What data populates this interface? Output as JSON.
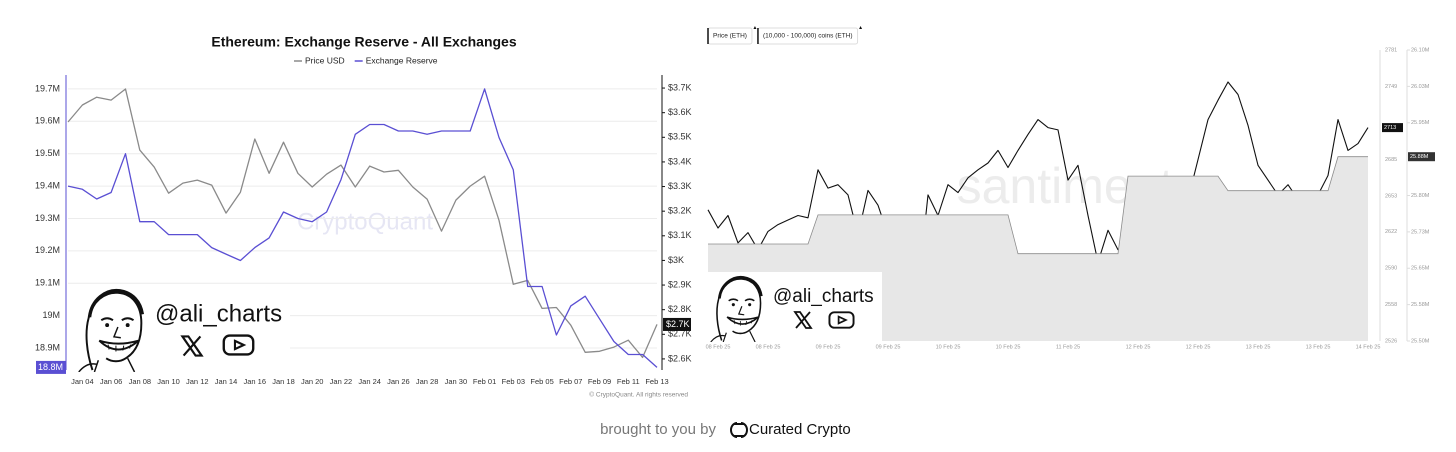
{
  "chart_data": [
    {
      "type": "line",
      "title": "Ethereum: Exchange Reserve - All Exchanges",
      "watermark": "CryptoQuant",
      "copyright": "© CryptoQuant. All rights reserved",
      "categories": [
        null,
        "Jan 04",
        null,
        "Jan 06",
        null,
        "Jan 08",
        null,
        "Jan 10",
        null,
        "Jan 12",
        null,
        "Jan 14",
        null,
        "Jan 16",
        null,
        "Jan 18",
        null,
        "Jan 20",
        null,
        "Jan 22",
        null,
        "Jan 24",
        null,
        "Jan 26",
        null,
        "Jan 28",
        null,
        "Jan 30",
        null,
        "Feb 01",
        null,
        "Feb 03",
        null,
        "Feb 05",
        null,
        "Feb 07",
        null,
        "Feb 09",
        null,
        "Feb 11",
        null,
        "Feb 13"
      ],
      "series": [
        {
          "name": "Price USD",
          "color": "#8a8a8a",
          "axis": "y2",
          "tag_color": "#111111",
          "values": [
            3562,
            3631,
            3663,
            3651,
            3696,
            3448,
            3379,
            3273,
            3314,
            3326,
            3306,
            3192,
            3277,
            3493,
            3354,
            3480,
            3354,
            3298,
            3350,
            3387,
            3298,
            3383,
            3359,
            3366,
            3298,
            3249,
            3119,
            3245,
            3302,
            3342,
            3163,
            2903,
            2919,
            2805,
            2809,
            2737,
            2627,
            2631,
            2648,
            2676,
            2606,
            2740
          ],
          "value_labels": [
            null,
            null,
            null,
            null,
            null,
            null,
            null,
            null,
            null,
            null,
            null,
            null,
            null,
            null,
            null,
            null,
            null,
            null,
            null,
            null,
            null,
            null,
            null,
            null,
            null,
            null,
            null,
            null,
            null,
            null,
            null,
            null,
            null,
            null,
            null,
            null,
            null,
            null,
            null,
            null,
            null,
            "$2.7K"
          ]
        },
        {
          "name": "Exchange Reserve",
          "color": "#5a4fd3",
          "tag_color": "#5a4fd3",
          "values": [
            19.4,
            19.39,
            19.36,
            19.38,
            19.5,
            19.29,
            19.29,
            19.25,
            19.25,
            19.25,
            19.21,
            19.19,
            19.17,
            19.21,
            19.24,
            19.32,
            19.3,
            19.29,
            19.32,
            19.42,
            19.56,
            19.59,
            19.59,
            19.57,
            19.57,
            19.56,
            19.57,
            19.57,
            19.57,
            19.7,
            19.55,
            19.45,
            19.09,
            19.09,
            18.94,
            19.03,
            19.06,
            18.99,
            18.92,
            18.88,
            18.88,
            18.84
          ],
          "value_labels": [
            null,
            null,
            null,
            null,
            null,
            null,
            null,
            null,
            null,
            null,
            null,
            null,
            null,
            null,
            null,
            null,
            null,
            null,
            null,
            null,
            null,
            null,
            null,
            null,
            null,
            null,
            null,
            null,
            null,
            null,
            null,
            null,
            null,
            null,
            null,
            null,
            null,
            null,
            null,
            null,
            null,
            "18.8M"
          ]
        }
      ],
      "ylim": [
        18.832,
        19.743
      ],
      "yticks": [
        {
          "value": 18.9,
          "label": "18.9M"
        },
        {
          "value": 19,
          "label": "19M"
        },
        {
          "value": 19.1,
          "label": "19.1M"
        },
        {
          "value": 19.2,
          "label": "19.2M"
        },
        {
          "value": 19.3,
          "label": "19.3M"
        },
        {
          "value": 19.4,
          "label": "19.4M"
        },
        {
          "value": 19.5,
          "label": "19.5M"
        },
        {
          "value": 19.6,
          "label": "19.6M"
        },
        {
          "value": 19.7,
          "label": "19.7M"
        }
      ],
      "y2lim": [
        2555,
        3753
      ],
      "y2ticks": [
        {
          "value": 2600,
          "label": "$2.6K"
        },
        {
          "value": 2700,
          "label": "$2.7K"
        },
        {
          "value": 2800,
          "label": "$2.8K"
        },
        {
          "value": 2900,
          "label": "$2.9K"
        },
        {
          "value": 3000,
          "label": "$3K"
        },
        {
          "value": 3100,
          "label": "$3.1K"
        },
        {
          "value": 3200,
          "label": "$3.2K"
        },
        {
          "value": 3300,
          "label": "$3.3K"
        },
        {
          "value": 3400,
          "label": "$3.4K"
        },
        {
          "value": 3500,
          "label": "$3.5K"
        },
        {
          "value": 3600,
          "label": "$3.6K"
        },
        {
          "value": 3700,
          "label": "$3.7K"
        }
      ],
      "grid": true,
      "legend": "top"
    },
    {
      "type": "line",
      "watermark": "santiment",
      "categories": [
        null,
        "08 Feb 25",
        null,
        null,
        null,
        null,
        "08 Feb 25",
        null,
        null,
        null,
        null,
        null,
        "09 Feb 25",
        null,
        null,
        null,
        null,
        null,
        "09 Feb 25",
        null,
        null,
        null,
        null,
        null,
        "10 Feb 25",
        null,
        null,
        null,
        null,
        null,
        "10 Feb 25",
        null,
        null,
        null,
        null,
        null,
        "11 Feb 25",
        null,
        null,
        null,
        null,
        null,
        null,
        "12 Feb 25",
        null,
        null,
        null,
        null,
        null,
        "12 Feb 25",
        null,
        null,
        null,
        null,
        null,
        "13 Feb 25",
        null,
        null,
        null,
        null,
        null,
        "13 Feb 25",
        null,
        null,
        null,
        null,
        "14 Feb 25"
      ],
      "series": [
        {
          "name": "Price (ETH)",
          "color": "#111111",
          "tag_color": "#111111",
          "tag_last": true,
          "values": [
            2641,
            2625,
            2636,
            2612,
            2621,
            2606,
            2622,
            2628,
            2632,
            2636,
            2634,
            2676,
            2660,
            2663,
            2654,
            2619,
            2658,
            2645,
            2619,
            2551,
            2630,
            2571,
            2654,
            2636,
            2663,
            2656,
            2669,
            2676,
            2682,
            2693,
            2678,
            2693,
            2707,
            2720,
            2713,
            2711,
            2667,
            2680,
            2636,
            2595,
            2623,
            2606,
            2614,
            2593,
            2614,
            2623,
            2625,
            2593,
            2650,
            2685,
            2720,
            2737,
            2753,
            2742,
            2715,
            2680,
            2667,
            2654,
            2663,
            2650,
            2632,
            2654,
            2671,
            2720,
            2693,
            2699,
            2713
          ]
        },
        {
          "name": "(10,000 - 100,000) coins (ETH)",
          "color": "#e7e7e7",
          "axis": "y2",
          "area": true,
          "tag_color": "#333333",
          "values": [
            25.7,
            25.7,
            25.7,
            25.7,
            25.7,
            25.7,
            25.7,
            25.7,
            25.7,
            25.7,
            25.7,
            25.76,
            25.76,
            25.76,
            25.76,
            25.76,
            25.76,
            25.76,
            25.76,
            25.76,
            25.76,
            25.76,
            25.76,
            25.76,
            25.76,
            25.76,
            25.76,
            25.76,
            25.76,
            25.76,
            25.76,
            25.68,
            25.68,
            25.68,
            25.68,
            25.68,
            25.68,
            25.68,
            25.68,
            25.68,
            25.68,
            25.68,
            25.84,
            25.84,
            25.84,
            25.84,
            25.84,
            25.84,
            25.84,
            25.84,
            25.84,
            25.84,
            25.81,
            25.81,
            25.81,
            25.81,
            25.81,
            25.81,
            25.81,
            25.81,
            25.81,
            25.81,
            25.81,
            25.88,
            25.88,
            25.88,
            25.88
          ],
          "value_labels": [
            null,
            null,
            null,
            null,
            null,
            null,
            null,
            null,
            null,
            null,
            null,
            null,
            null,
            null,
            null,
            null,
            null,
            null,
            null,
            null,
            null,
            null,
            null,
            null,
            null,
            null,
            null,
            null,
            null,
            null,
            null,
            null,
            null,
            null,
            null,
            null,
            null,
            null,
            null,
            null,
            null,
            null,
            null,
            null,
            null,
            null,
            null,
            null,
            null,
            null,
            null,
            null,
            null,
            null,
            null,
            null,
            null,
            null,
            null,
            null,
            null,
            null,
            null,
            null,
            null,
            null,
            "25.88M"
          ]
        }
      ],
      "ylim": [
        2526,
        2781
      ],
      "yticks": [
        2526,
        2558,
        2590,
        2622,
        2653,
        2685,
        2749,
        2781
      ],
      "y2lim": [
        25.5,
        26.1
      ],
      "y2ticks": [
        {
          "value": 25.5,
          "label": "25.50M"
        },
        {
          "value": 25.575,
          "label": "25.58M"
        },
        {
          "value": 25.65,
          "label": "25.65M"
        },
        {
          "value": 25.725,
          "label": "25.73M"
        },
        {
          "value": 25.8,
          "label": "25.80M"
        },
        {
          "value": 25.95,
          "label": "25.95M"
        },
        {
          "value": 26.025,
          "label": "26.03M"
        },
        {
          "value": 26.1,
          "label": "26.10M"
        }
      ],
      "grid": false,
      "legend": "top-left"
    }
  ],
  "overlay": {
    "handle": "@ali_charts"
  },
  "footer": {
    "text": "brought to you by",
    "brand": "Curated Crypto"
  }
}
